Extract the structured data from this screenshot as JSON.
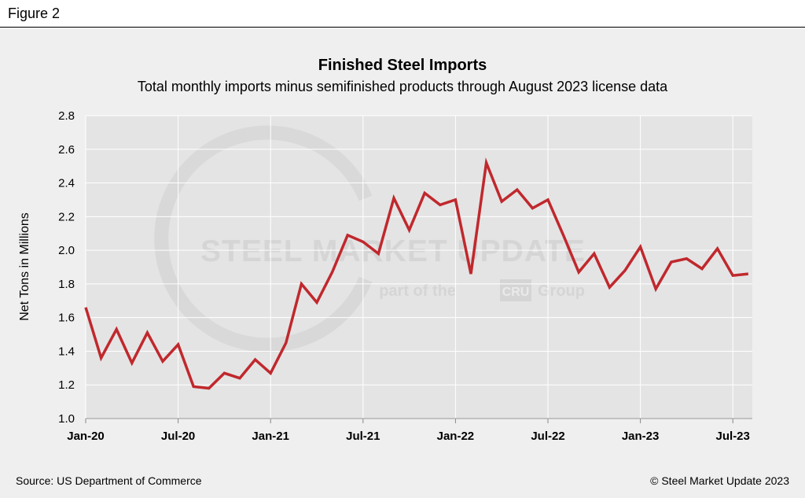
{
  "figure_label": "Figure 2",
  "watermark": {
    "brand": "STEEL MARKET UPDATE",
    "tagline_prefix": "part of the",
    "tagline_logo": "CRU",
    "tagline_suffix": "Group"
  },
  "footer": {
    "source": "Source: US Department of Commerce",
    "copyright": "© Steel Market Update 2023"
  },
  "colors": {
    "line": "#c0282d",
    "plot_bg": "#e4e4e4",
    "grid": "#ffffff"
  },
  "chart_data": {
    "type": "line",
    "title": "Finished Steel Imports",
    "subtitle": "Total monthly imports minus semifinished products through August 2023 license data",
    "xlabel": "",
    "ylabel": "Net Tons in Millions",
    "ylim": [
      1.0,
      2.8
    ],
    "yticks": [
      "1.0",
      "1.2",
      "1.4",
      "1.6",
      "1.8",
      "2.0",
      "2.2",
      "2.4",
      "2.6",
      "2.8"
    ],
    "xticks": [
      "Jan-20",
      "Jul-20",
      "Jan-21",
      "Jul-21",
      "Jan-22",
      "Jul-22",
      "Jan-23",
      "Jul-23"
    ],
    "grid": true,
    "x": [
      "2020-01",
      "2020-02",
      "2020-03",
      "2020-04",
      "2020-05",
      "2020-06",
      "2020-07",
      "2020-08",
      "2020-09",
      "2020-10",
      "2020-11",
      "2020-12",
      "2021-01",
      "2021-02",
      "2021-03",
      "2021-04",
      "2021-05",
      "2021-06",
      "2021-07",
      "2021-08",
      "2021-09",
      "2021-10",
      "2021-11",
      "2021-12",
      "2022-01",
      "2022-02",
      "2022-03",
      "2022-04",
      "2022-05",
      "2022-06",
      "2022-07",
      "2022-08",
      "2022-09",
      "2022-10",
      "2022-11",
      "2022-12",
      "2023-01",
      "2023-02",
      "2023-03",
      "2023-04",
      "2023-05",
      "2023-06",
      "2023-07",
      "2023-08"
    ],
    "series": [
      {
        "name": "Finished Steel Imports",
        "values": [
          1.66,
          1.36,
          1.53,
          1.33,
          1.51,
          1.34,
          1.44,
          1.19,
          1.18,
          1.27,
          1.24,
          1.35,
          1.27,
          1.45,
          1.8,
          1.69,
          1.87,
          2.09,
          2.05,
          1.98,
          2.31,
          2.12,
          2.34,
          2.27,
          2.3,
          1.86,
          2.52,
          2.29,
          2.36,
          2.25,
          2.3,
          2.09,
          1.87,
          1.98,
          1.78,
          1.88,
          2.02,
          1.77,
          1.93,
          1.95,
          1.89,
          2.01,
          1.85,
          1.86
        ]
      }
    ]
  }
}
